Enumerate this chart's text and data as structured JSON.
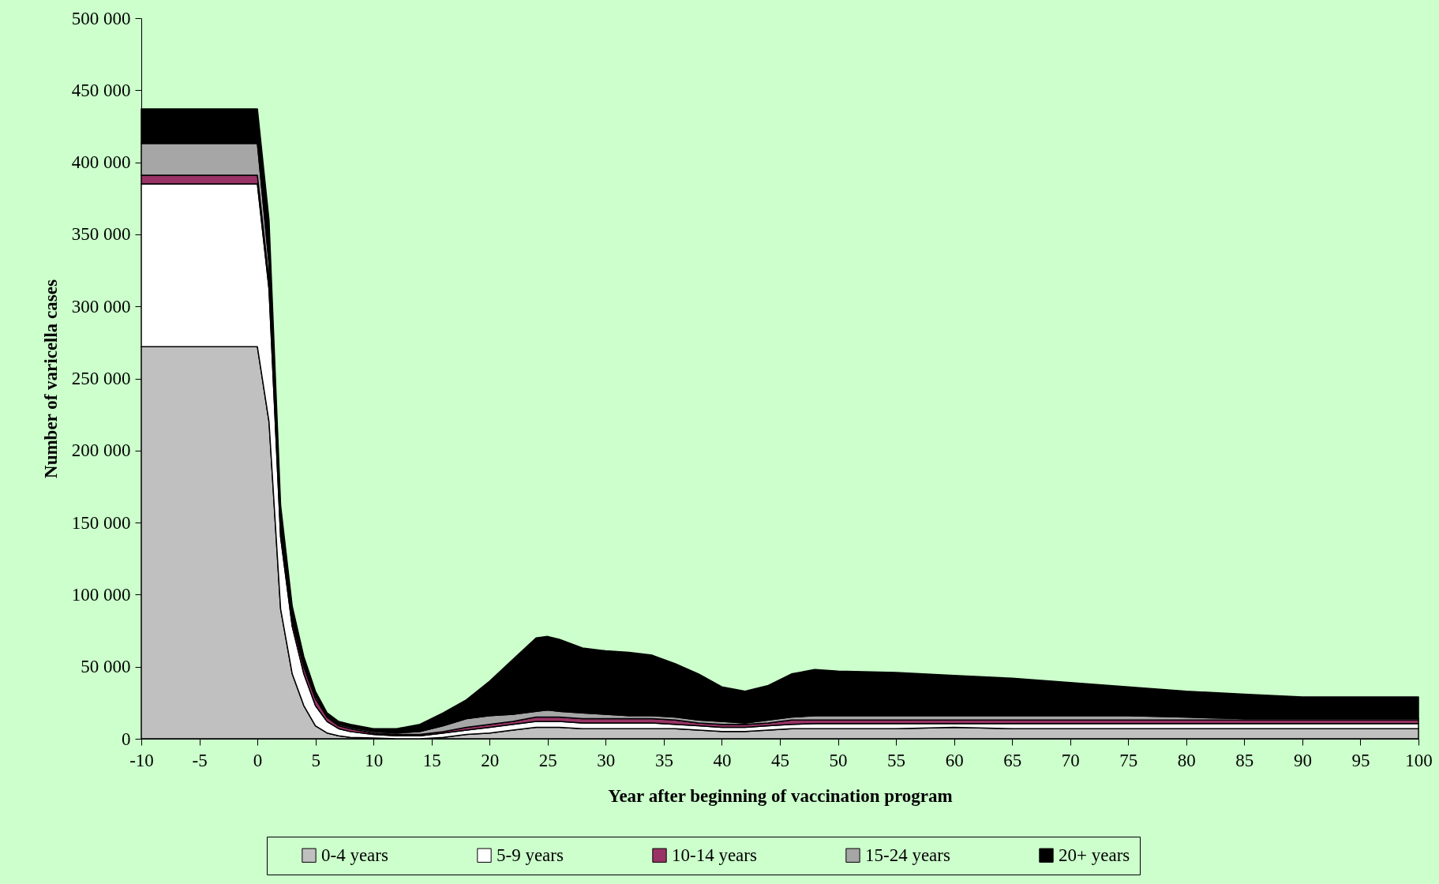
{
  "chart_data": {
    "type": "area",
    "stacked": true,
    "xlabel": "Year after beginning of vaccination program",
    "ylabel": "Number of varicella cases",
    "x": [
      -10,
      0,
      1,
      2,
      3,
      4,
      5,
      6,
      7,
      8,
      10,
      12,
      14,
      16,
      18,
      20,
      22,
      24,
      25,
      26,
      28,
      30,
      32,
      34,
      36,
      38,
      40,
      42,
      44,
      46,
      48,
      50,
      55,
      60,
      65,
      70,
      75,
      80,
      85,
      90,
      100
    ],
    "series": [
      {
        "name": "0-4 years",
        "color": "#c0c0c0",
        "values": [
          272000,
          272000,
          220000,
          90000,
          45000,
          23000,
          9000,
          4000,
          2000,
          1000,
          500,
          0,
          0,
          1000,
          3000,
          4000,
          6000,
          8000,
          8000,
          8000,
          7000,
          7000,
          7000,
          7000,
          7000,
          6000,
          5000,
          5000,
          6000,
          7000,
          7000,
          7000,
          7000,
          8000,
          7000,
          7000,
          7000,
          7000,
          7000,
          7000,
          7000
        ]
      },
      {
        "name": "5-9 years",
        "color": "#ffffff",
        "values": [
          113000,
          113000,
          92000,
          50000,
          33000,
          22000,
          14000,
          8000,
          5000,
          4000,
          2500,
          2000,
          2000,
          3000,
          3000,
          4000,
          4000,
          4000,
          4000,
          4000,
          4000,
          4000,
          4000,
          4000,
          3000,
          3000,
          3000,
          3000,
          3000,
          3000,
          3500,
          3500,
          3500,
          2500,
          3500,
          3500,
          3500,
          3500,
          3500,
          3500,
          3500
        ]
      },
      {
        "name": "10-14 years",
        "color": "#993366",
        "values": [
          6000,
          6000,
          6000,
          5000,
          4000,
          5000,
          5000,
          3000,
          2000,
          2000,
          1000,
          1000,
          1000,
          1000,
          2000,
          2000,
          2000,
          3000,
          3000,
          3000,
          3000,
          3000,
          3000,
          3000,
          3000,
          2000,
          2000,
          2000,
          2000,
          3000,
          2500,
          2500,
          2500,
          2500,
          2500,
          2500,
          2500,
          2500,
          2500,
          2500,
          2500
        ]
      },
      {
        "name": "15-24 years",
        "color": "#a6a6a6",
        "values": [
          22000,
          22000,
          12000,
          5000,
          3000,
          2000,
          2000,
          1000,
          1000,
          1000,
          1000,
          1000,
          2000,
          4000,
          6000,
          6000,
          5000,
          4000,
          5000,
          4000,
          4000,
          3000,
          2000,
          2000,
          2000,
          2000,
          2000,
          1000,
          2000,
          2000,
          3000,
          3000,
          3000,
          3000,
          3000,
          3000,
          3000,
          2000,
          1000,
          1000,
          1000
        ]
      },
      {
        "name": "20+ years",
        "color": "#000000",
        "values": [
          24000,
          24000,
          30000,
          12000,
          7000,
          5000,
          3000,
          2000,
          2000,
          2000,
          2000,
          3000,
          5000,
          9000,
          13000,
          24000,
          38000,
          51000,
          51000,
          50000,
          45000,
          44000,
          44000,
          42000,
          37000,
          32000,
          24000,
          22000,
          24000,
          30000,
          32000,
          31000,
          30000,
          28000,
          26000,
          23000,
          20000,
          18000,
          17000,
          15000,
          15000
        ]
      }
    ],
    "xlim": [
      -10,
      100
    ],
    "xticks": [
      -10,
      -5,
      0,
      5,
      10,
      15,
      20,
      25,
      30,
      35,
      40,
      45,
      50,
      55,
      60,
      65,
      70,
      75,
      80,
      85,
      90,
      95,
      100
    ],
    "ylim": [
      0,
      500000
    ],
    "yticks": [
      0,
      {
        "value": 50000,
        "label": "50 000"
      },
      {
        "value": 100000,
        "label": "100 000"
      },
      {
        "value": 150000,
        "label": "150 000"
      },
      {
        "value": 200000,
        "label": "200 000"
      },
      {
        "value": 250000,
        "label": "250 000"
      },
      {
        "value": 300000,
        "label": "300 000"
      },
      {
        "value": 350000,
        "label": "350 000"
      },
      {
        "value": 400000,
        "label": "400 000"
      },
      {
        "value": 450000,
        "label": "450 000"
      },
      {
        "value": 500000,
        "label": "500 000"
      }
    ],
    "grid": false,
    "legend": "bottom"
  }
}
